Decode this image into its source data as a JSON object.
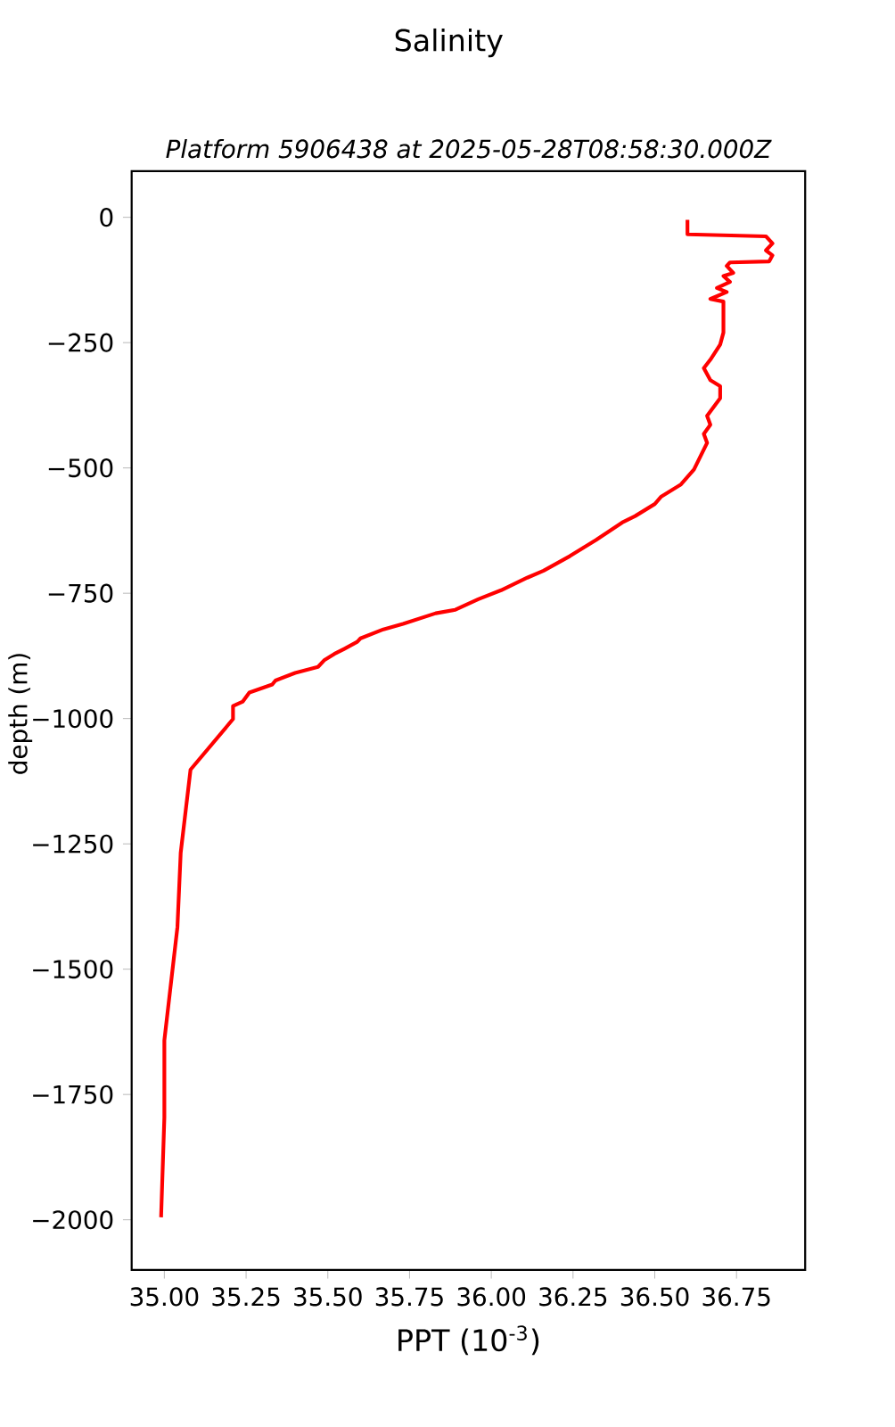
{
  "chart_data": {
    "type": "line",
    "title": "Salinity",
    "subtitle": "Platform 5906438 at 2025-05-28T08:58:30.000Z",
    "xlabel": "PPT (10$^{-3}$)",
    "ylabel": "depth (m)",
    "xlim": [
      34.9,
      36.96
    ],
    "ylim": [
      -2100,
      92
    ],
    "xticks": [
      {
        "value": 35,
        "label": "35.00"
      },
      {
        "value": 35.25,
        "label": "35.25"
      },
      {
        "value": 35.5,
        "label": "35.50"
      },
      {
        "value": 35.75,
        "label": "35.75"
      },
      {
        "value": 36,
        "label": "36.00"
      },
      {
        "value": 36.25,
        "label": "36.25"
      },
      {
        "value": 36.5,
        "label": "36.50"
      },
      {
        "value": 36.75,
        "label": "36.75"
      }
    ],
    "yticks": [
      0,
      {
        "value": -250,
        "label": "−250"
      },
      {
        "value": -500,
        "label": "−500"
      },
      {
        "value": -750,
        "label": "−750"
      },
      {
        "value": -1000,
        "label": "−1000"
      },
      {
        "value": -1250,
        "label": "−1250"
      },
      {
        "value": -1500,
        "label": "−1500"
      },
      {
        "value": -1750,
        "label": "−1750"
      },
      {
        "value": -2000,
        "label": "−2000"
      }
    ],
    "grid": false,
    "marker": "none",
    "line_style": "solid",
    "series": [
      {
        "color": "#ff0000",
        "x": [
          36.6,
          36.6,
          36.84,
          36.86,
          36.84,
          36.86,
          36.85,
          36.73,
          36.72,
          36.74,
          36.71,
          36.73,
          36.69,
          36.72,
          36.67,
          36.71,
          36.71,
          36.7,
          36.67,
          36.65,
          36.67,
          36.7,
          36.7,
          36.66,
          36.67,
          36.65,
          36.66,
          36.62,
          36.58,
          36.52,
          36.5,
          36.44,
          36.4,
          36.32,
          36.24,
          36.16,
          36.11,
          36.03,
          35.96,
          35.89,
          35.83,
          35.73,
          35.67,
          35.6,
          35.59,
          35.55,
          35.52,
          35.49,
          35.47,
          35.4,
          35.34,
          35.33,
          35.26,
          35.24,
          35.21,
          35.21,
          35.08,
          35.05,
          35.04,
          35.0,
          35.0,
          34.99
        ],
        "values": [
          -5,
          -34,
          -38,
          -52,
          -66,
          -76,
          -88,
          -90,
          -97,
          -111,
          -117,
          -129,
          -141,
          -149,
          -163,
          -168,
          -230,
          -254,
          -284,
          -301,
          -325,
          -337,
          -361,
          -396,
          -414,
          -432,
          -450,
          -503,
          -533,
          -557,
          -572,
          -596,
          -609,
          -644,
          -676,
          -705,
          -719,
          -744,
          -762,
          -783,
          -790,
          -811,
          -822,
          -840,
          -847,
          -861,
          -871,
          -883,
          -897,
          -909,
          -924,
          -932,
          -948,
          -966,
          -975,
          -1001,
          -1102,
          -1268,
          -1416,
          -1642,
          -1796,
          -1995
        ]
      }
    ]
  }
}
